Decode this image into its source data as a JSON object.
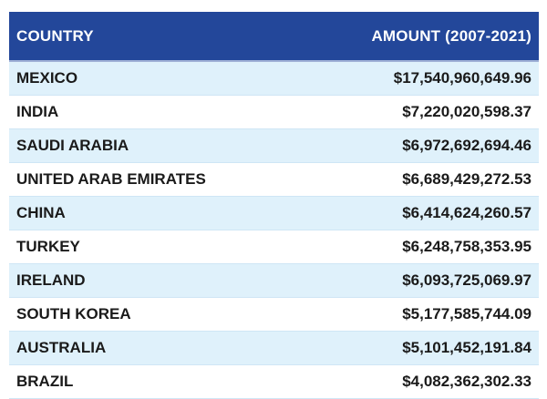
{
  "table": {
    "headers": {
      "country": "COUNTRY",
      "amount": "AMOUNT (2007-2021)"
    },
    "rows": [
      {
        "country": "MEXICO",
        "amount": "$17,540,960,649.96"
      },
      {
        "country": "INDIA",
        "amount": "$7,220,020,598.37"
      },
      {
        "country": "SAUDI ARABIA",
        "amount": "$6,972,692,694.46"
      },
      {
        "country": "UNITED ARAB EMIRATES",
        "amount": "$6,689,429,272.53"
      },
      {
        "country": "CHINA",
        "amount": "$6,414,624,260.57"
      },
      {
        "country": "TURKEY",
        "amount": "$6,248,758,353.95"
      },
      {
        "country": "IRELAND",
        "amount": "$6,093,725,069.97"
      },
      {
        "country": "SOUTH KOREA",
        "amount": "$5,177,585,744.09"
      },
      {
        "country": "AUSTRALIA",
        "amount": "$5,101,452,191.84"
      },
      {
        "country": "BRAZIL",
        "amount": "$4,082,362,302.33"
      }
    ]
  },
  "colors": {
    "header_bg": "#23479a",
    "header_text": "#ffffff",
    "row_alt_bg": "#dff1fb",
    "row_bg": "#ffffff"
  }
}
